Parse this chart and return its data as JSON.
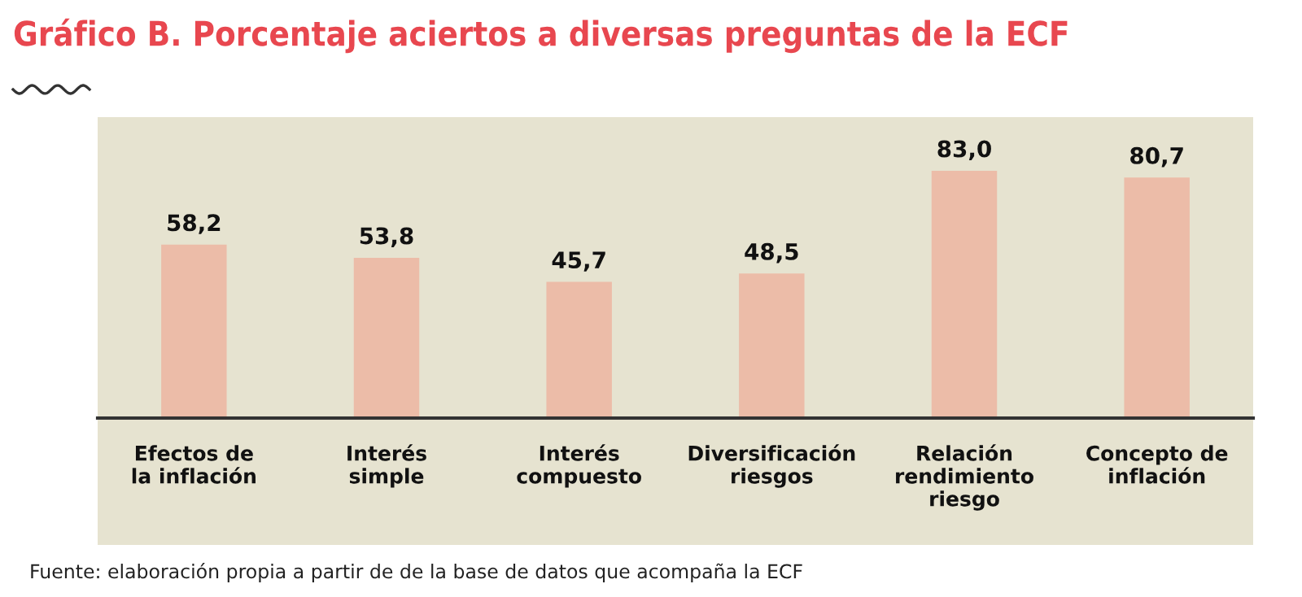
{
  "chart_data": {
    "type": "bar",
    "title": "Gráfico B. Porcentaje aciertos a diversas preguntas de la ECF",
    "categories": [
      "Efectos de\nla inflación",
      "Interés\nsimple",
      "Interés\ncompuesto",
      "Diversificación\nriesgos",
      "Relación\nrendimiento\nriesgo",
      "Concepto de\ninflación"
    ],
    "values": [
      58.2,
      53.8,
      45.7,
      48.5,
      83.0,
      80.7
    ],
    "value_labels": [
      "58,2",
      "53,8",
      "45,7",
      "48,5",
      "83,0",
      "80,7"
    ],
    "color": "#ecbca8",
    "ylim": [
      0,
      101
    ],
    "grid": false,
    "legend": false,
    "annotations": [
      "Fuente: elaboración propia a partir de de la base de datos que acompaña la ECF"
    ]
  }
}
